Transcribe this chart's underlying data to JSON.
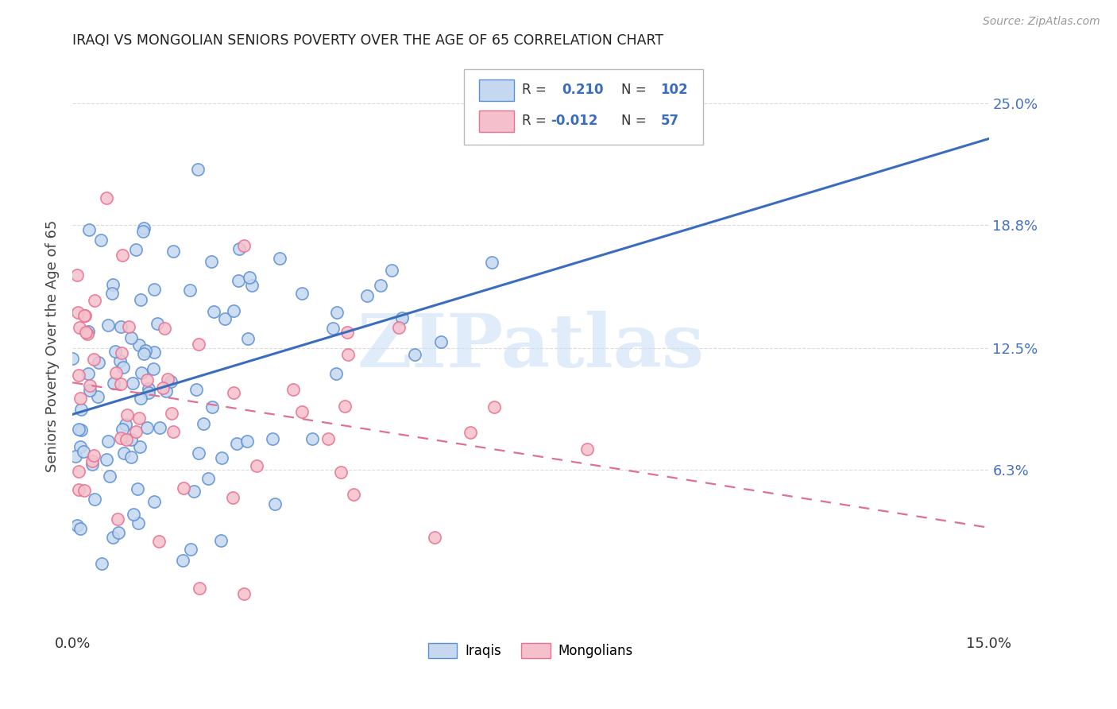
{
  "title": "IRAQI VS MONGOLIAN SENIORS POVERTY OVER THE AGE OF 65 CORRELATION CHART",
  "source": "Source: ZipAtlas.com",
  "ylabel_label": "Seniors Poverty Over the Age of 65",
  "ylabel_ticks": [
    "6.3%",
    "12.5%",
    "18.8%",
    "25.0%"
  ],
  "ylabel_tick_vals": [
    0.063,
    0.125,
    0.188,
    0.25
  ],
  "xmin": 0.0,
  "xmax": 0.15,
  "ymin": -0.02,
  "ymax": 0.272,
  "iraqis_R": 0.21,
  "iraqis_N": 102,
  "mongolians_R": -0.012,
  "mongolians_N": 57,
  "iraqis_fill_color": "#c5d8f0",
  "mongolians_fill_color": "#f5c0cc",
  "iraqis_edge_color": "#5b8fd4",
  "mongolians_edge_color": "#e87090",
  "iraqis_line_color": "#3a6dbf",
  "mongolians_line_color": "#e07090",
  "background_color": "#ffffff",
  "grid_color": "#cccccc",
  "title_color": "#222222",
  "right_label_color": "#4472c4",
  "watermark_color": "#c8ddf5",
  "watermark_text": "ZIPatlas",
  "legend_iraqis_label": "Iraqis",
  "legend_mongolians_label": "Mongolians",
  "legend_text_color": "#3a6dbf",
  "seed": 7
}
